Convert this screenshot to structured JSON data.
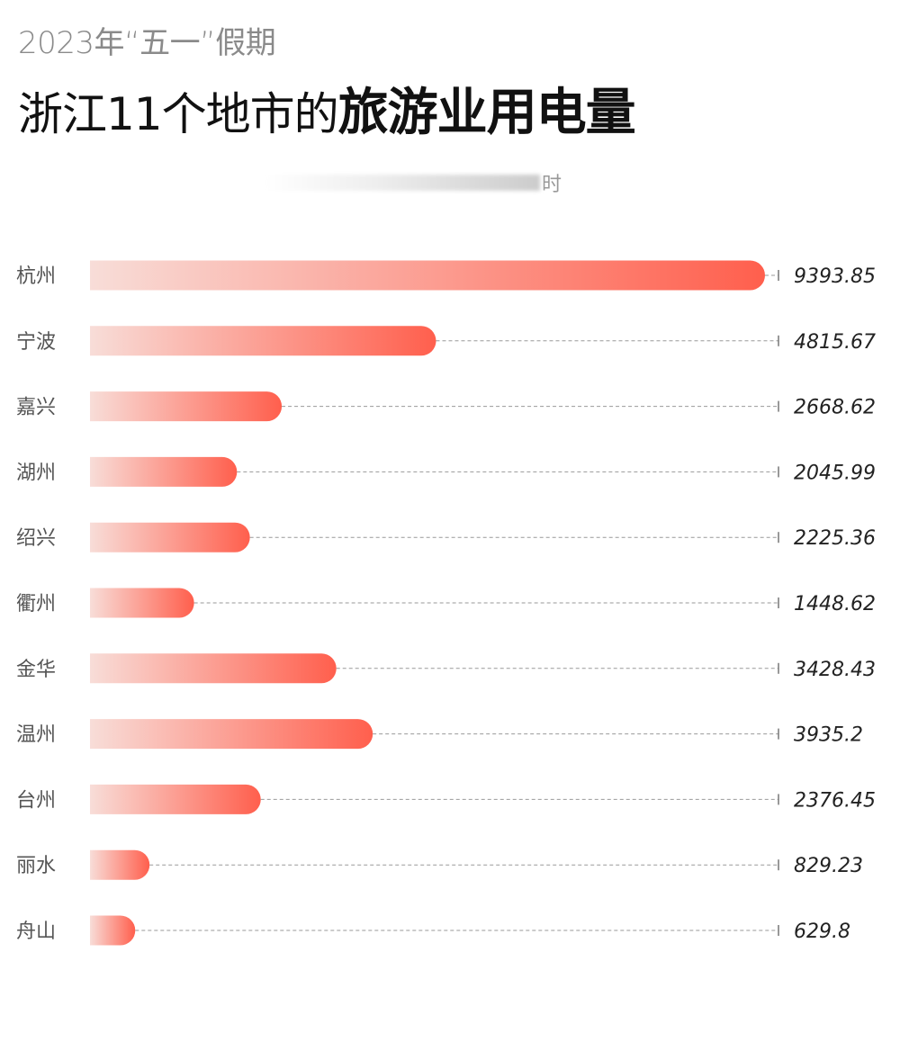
{
  "header": {
    "subtitle": "2023年“五一”假期",
    "title_regular": "浙江11个地市的",
    "title_bold": "旅游业用电量",
    "unit": "时"
  },
  "chart_data": {
    "type": "bar",
    "orientation": "horizontal",
    "title": "浙江11个地市的旅游业用电量",
    "subtitle": "2023年“五一”假期",
    "categories": [
      "杭州",
      "宁波",
      "嘉兴",
      "湖州",
      "绍兴",
      "衢州",
      "金华",
      "温州",
      "台州",
      "丽水",
      "舟山"
    ],
    "values": [
      9393.85,
      4815.67,
      2668.62,
      2045.99,
      2225.36,
      1448.62,
      3428.43,
      3935.2,
      2376.45,
      829.23,
      629.8
    ],
    "value_labels": [
      "9393.85",
      "4815.67",
      "2668.62",
      "2045.99",
      "2225.36",
      "1448.62",
      "3428.43",
      "3935.2",
      "2376.45",
      "829.23",
      "629.8"
    ],
    "xlim": [
      0,
      9393.85
    ],
    "grid": false,
    "legend": "none",
    "colors": {
      "bar_start": "#f8ddd8",
      "bar_end": "#ff5f4d",
      "guide_line": "#999999"
    }
  }
}
